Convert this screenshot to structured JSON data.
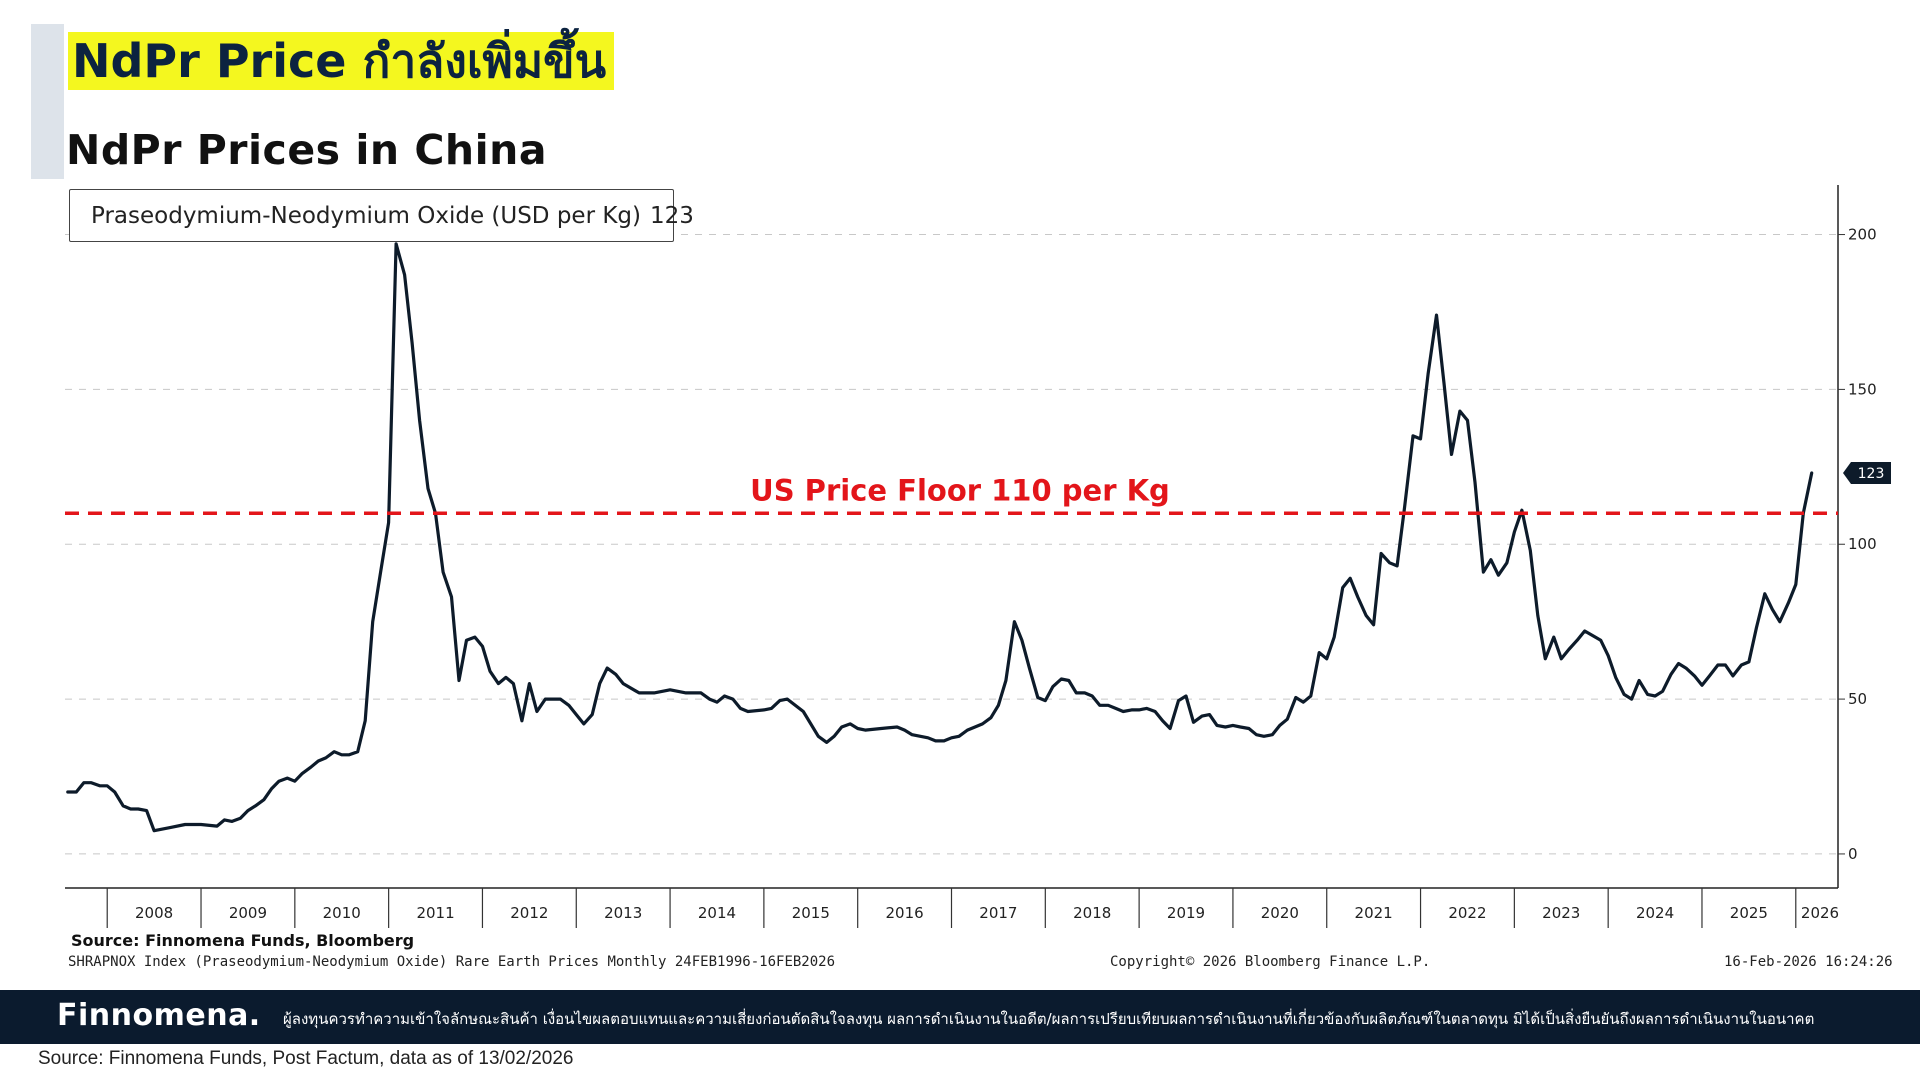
{
  "header": {
    "headline": "NdPr Price กำลังเพิ่มขึ้น",
    "chart_title": "NdPr Prices in China"
  },
  "legend": {
    "label": "Praseodymium-Neodymium Oxide (USD per Kg)",
    "value": "123"
  },
  "annotation": {
    "floor_label": "US Price Floor 110 per Kg",
    "floor_color": "#e3151a",
    "last_value_tag": "123"
  },
  "footer": {
    "chart_source": "Source: Finnomena Funds, Bloomberg",
    "index_line": "SHRAPNOX Index (Praseodymium-Neodymium Oxide) Rare Earth Prices Monthly 24FEB1996-16FEB2026",
    "copyright": "Copyright© 2026 Bloomberg Finance L.P.",
    "timestamp": "16-Feb-2026 16:24:26",
    "brand": "Finnomena.",
    "disclaimer": "ผู้ลงทุนควรทำความเข้าใจลักษณะสินค้า เงื่อนไขผลตอบแทนและความเสี่ยงก่อนตัดสินใจลงทุน ผลการดำเนินงานในอดีต/ผลการเปรียบเทียบผลการดำเนินงานที่เกี่ยวข้องกับผลิตภัณฑ์ในตลาดทุน มิได้เป็นสิ่งยืนยันถึงผลการดำเนินงานในอนาคต",
    "data_source": "Source: Finnomena Funds, Post Factum, data as of 13/02/2026",
    "band_color": "#0b1b2e"
  },
  "chart_data": {
    "type": "line",
    "title": "NdPr Prices in China",
    "xlabel": "",
    "ylabel": "",
    "ylim": [
      -11,
      216
    ],
    "xlim": [
      2007.55,
      2026.45
    ],
    "yticks": [
      0,
      50,
      100,
      150,
      200
    ],
    "ytick_labels": [
      "0",
      "50",
      "100",
      "150",
      "200"
    ],
    "xtick_labels": [
      "2008",
      "2009",
      "2010",
      "2011",
      "2012",
      "2013",
      "2014",
      "2015",
      "2016",
      "2017",
      "2018",
      "2019",
      "2020",
      "2021",
      "2022",
      "2023",
      "2024",
      "2025",
      "2026"
    ],
    "grid": "horizontal dashed",
    "legend_position": "top-left",
    "reference_line": {
      "y": 110,
      "label": "US Price Floor 110 per Kg",
      "color": "#e3151a",
      "style": "dashed"
    },
    "series": [
      {
        "name": "Praseodymium-Neodymium Oxide (USD per Kg)",
        "color": "#0d1b2a",
        "last_value": 123,
        "points": [
          [
            2007.58,
            20
          ],
          [
            2007.67,
            20
          ],
          [
            2007.75,
            23
          ],
          [
            2007.83,
            23
          ],
          [
            2007.92,
            22
          ],
          [
            2008.0,
            22
          ],
          [
            2008.08,
            20
          ],
          [
            2008.17,
            15.5
          ],
          [
            2008.25,
            14.5
          ],
          [
            2008.33,
            14.5
          ],
          [
            2008.42,
            14
          ],
          [
            2008.5,
            7.5
          ],
          [
            2008.67,
            8.5
          ],
          [
            2008.83,
            9.5
          ],
          [
            2009.0,
            9.5
          ],
          [
            2009.17,
            9
          ],
          [
            2009.25,
            11
          ],
          [
            2009.33,
            10.5
          ],
          [
            2009.42,
            11.5
          ],
          [
            2009.5,
            14
          ],
          [
            2009.58,
            15.5
          ],
          [
            2009.67,
            17.5
          ],
          [
            2009.75,
            21
          ],
          [
            2009.83,
            23.5
          ],
          [
            2009.92,
            24.5
          ],
          [
            2010.0,
            23.5
          ],
          [
            2010.08,
            26
          ],
          [
            2010.17,
            28
          ],
          [
            2010.25,
            30
          ],
          [
            2010.33,
            31
          ],
          [
            2010.42,
            33
          ],
          [
            2010.5,
            32
          ],
          [
            2010.58,
            32
          ],
          [
            2010.67,
            33
          ],
          [
            2010.75,
            43
          ],
          [
            2010.83,
            75
          ],
          [
            2010.92,
            92
          ],
          [
            2011.0,
            107
          ],
          [
            2011.08,
            197
          ],
          [
            2011.17,
            187
          ],
          [
            2011.25,
            165
          ],
          [
            2011.33,
            140
          ],
          [
            2011.42,
            118
          ],
          [
            2011.5,
            110
          ],
          [
            2011.58,
            91
          ],
          [
            2011.67,
            83
          ],
          [
            2011.75,
            56
          ],
          [
            2011.83,
            69
          ],
          [
            2011.92,
            70
          ],
          [
            2012.0,
            67
          ],
          [
            2012.08,
            59
          ],
          [
            2012.17,
            55
          ],
          [
            2012.25,
            57
          ],
          [
            2012.33,
            55
          ],
          [
            2012.42,
            43
          ],
          [
            2012.5,
            55
          ],
          [
            2012.58,
            46
          ],
          [
            2012.67,
            50
          ],
          [
            2012.83,
            50
          ],
          [
            2012.92,
            48
          ],
          [
            2013.0,
            45
          ],
          [
            2013.08,
            42
          ],
          [
            2013.17,
            45
          ],
          [
            2013.25,
            55
          ],
          [
            2013.33,
            60
          ],
          [
            2013.42,
            58
          ],
          [
            2013.5,
            55
          ],
          [
            2013.67,
            52
          ],
          [
            2013.83,
            52
          ],
          [
            2014.0,
            53
          ],
          [
            2014.17,
            52
          ],
          [
            2014.33,
            52
          ],
          [
            2014.42,
            50
          ],
          [
            2014.5,
            49
          ],
          [
            2014.58,
            51
          ],
          [
            2014.67,
            50
          ],
          [
            2014.75,
            47
          ],
          [
            2014.83,
            46
          ],
          [
            2015.0,
            46.5
          ],
          [
            2015.08,
            47
          ],
          [
            2015.17,
            49.5
          ],
          [
            2015.25,
            50
          ],
          [
            2015.42,
            46
          ],
          [
            2015.58,
            38
          ],
          [
            2015.67,
            36
          ],
          [
            2015.75,
            38
          ],
          [
            2015.83,
            41
          ],
          [
            2015.92,
            42
          ],
          [
            2016.0,
            40.5
          ],
          [
            2016.08,
            40
          ],
          [
            2016.25,
            40.5
          ],
          [
            2016.42,
            41
          ],
          [
            2016.5,
            40
          ],
          [
            2016.58,
            38.5
          ],
          [
            2016.75,
            37.5
          ],
          [
            2016.83,
            36.5
          ],
          [
            2016.92,
            36.5
          ],
          [
            2017.0,
            37.5
          ],
          [
            2017.08,
            38
          ],
          [
            2017.17,
            40
          ],
          [
            2017.25,
            41
          ],
          [
            2017.33,
            42
          ],
          [
            2017.42,
            44
          ],
          [
            2017.5,
            48
          ],
          [
            2017.58,
            56
          ],
          [
            2017.67,
            75
          ],
          [
            2017.75,
            69
          ],
          [
            2017.83,
            60
          ],
          [
            2017.92,
            50.5
          ],
          [
            2018.0,
            49.5
          ],
          [
            2018.08,
            54
          ],
          [
            2018.17,
            56.5
          ],
          [
            2018.25,
            56
          ],
          [
            2018.33,
            52
          ],
          [
            2018.42,
            52
          ],
          [
            2018.5,
            51
          ],
          [
            2018.58,
            48
          ],
          [
            2018.67,
            48
          ],
          [
            2018.75,
            47
          ],
          [
            2018.83,
            46
          ],
          [
            2018.92,
            46.5
          ],
          [
            2019.0,
            46.5
          ],
          [
            2019.08,
            47
          ],
          [
            2019.17,
            46
          ],
          [
            2019.25,
            43
          ],
          [
            2019.33,
            40.5
          ],
          [
            2019.42,
            49.5
          ],
          [
            2019.5,
            51
          ],
          [
            2019.58,
            42.5
          ],
          [
            2019.67,
            44.5
          ],
          [
            2019.75,
            45
          ],
          [
            2019.83,
            41.5
          ],
          [
            2019.92,
            41
          ],
          [
            2020.0,
            41.5
          ],
          [
            2020.08,
            41
          ],
          [
            2020.17,
            40.5
          ],
          [
            2020.25,
            38.5
          ],
          [
            2020.33,
            38
          ],
          [
            2020.42,
            38.5
          ],
          [
            2020.5,
            41.5
          ],
          [
            2020.58,
            43.5
          ],
          [
            2020.67,
            50.5
          ],
          [
            2020.75,
            49
          ],
          [
            2020.83,
            51
          ],
          [
            2020.92,
            65
          ],
          [
            2021.0,
            63
          ],
          [
            2021.08,
            70
          ],
          [
            2021.17,
            86
          ],
          [
            2021.25,
            89
          ],
          [
            2021.33,
            83
          ],
          [
            2021.42,
            77
          ],
          [
            2021.5,
            74
          ],
          [
            2021.58,
            97
          ],
          [
            2021.67,
            94
          ],
          [
            2021.75,
            93
          ],
          [
            2021.83,
            112
          ],
          [
            2021.92,
            135
          ],
          [
            2022.0,
            134
          ],
          [
            2022.08,
            155
          ],
          [
            2022.17,
            174
          ],
          [
            2022.25,
            152
          ],
          [
            2022.33,
            129
          ],
          [
            2022.42,
            143
          ],
          [
            2022.5,
            140
          ],
          [
            2022.58,
            120
          ],
          [
            2022.67,
            91
          ],
          [
            2022.75,
            95
          ],
          [
            2022.83,
            90
          ],
          [
            2022.92,
            94
          ],
          [
            2023.0,
            104
          ],
          [
            2023.08,
            111
          ],
          [
            2023.17,
            98
          ],
          [
            2023.25,
            77
          ],
          [
            2023.33,
            63
          ],
          [
            2023.42,
            70
          ],
          [
            2023.5,
            63
          ],
          [
            2023.58,
            66
          ],
          [
            2023.67,
            69
          ],
          [
            2023.75,
            72
          ],
          [
            2023.92,
            69
          ],
          [
            2024.0,
            64
          ],
          [
            2024.08,
            57
          ],
          [
            2024.17,
            51.5
          ],
          [
            2024.25,
            50
          ],
          [
            2024.33,
            56
          ],
          [
            2024.42,
            51.5
          ],
          [
            2024.5,
            51
          ],
          [
            2024.58,
            52.5
          ],
          [
            2024.67,
            58
          ],
          [
            2024.75,
            61.5
          ],
          [
            2024.83,
            60
          ],
          [
            2024.92,
            57.5
          ],
          [
            2025.0,
            54.5
          ],
          [
            2025.08,
            57.5
          ],
          [
            2025.17,
            61
          ],
          [
            2025.25,
            61
          ],
          [
            2025.33,
            57.5
          ],
          [
            2025.42,
            61
          ],
          [
            2025.5,
            62
          ],
          [
            2025.58,
            73
          ],
          [
            2025.67,
            84
          ],
          [
            2025.75,
            79
          ],
          [
            2025.83,
            75
          ],
          [
            2025.92,
            81
          ],
          [
            2026.0,
            87
          ],
          [
            2026.08,
            110
          ],
          [
            2026.17,
            123
          ]
        ]
      }
    ]
  }
}
